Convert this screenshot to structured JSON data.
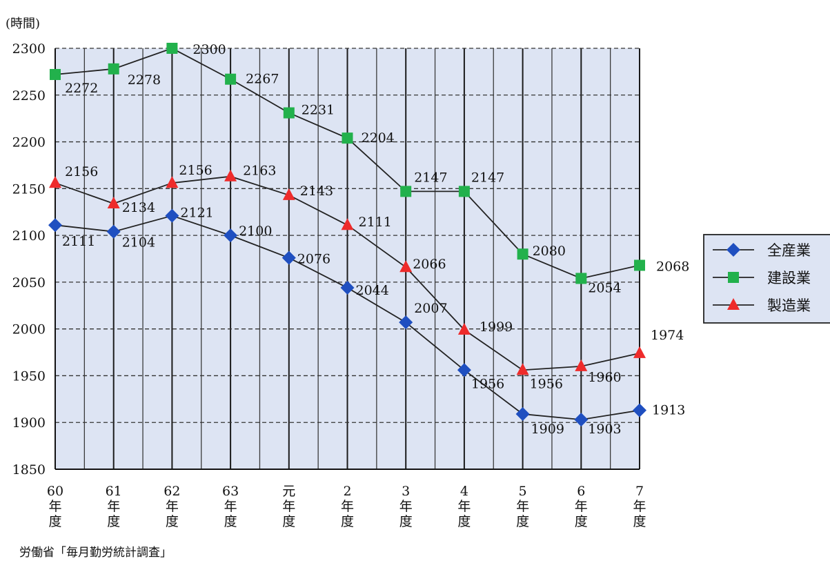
{
  "chart_data": {
    "type": "line",
    "ylabel": "(時間)",
    "ylim": [
      1850,
      2300
    ],
    "yticks": [
      1850,
      1900,
      1950,
      2000,
      2050,
      2100,
      2150,
      2200,
      2250,
      2300
    ],
    "categories": [
      [
        "60",
        "年",
        "度"
      ],
      [
        "61",
        "年",
        "度"
      ],
      [
        "62",
        "年",
        "度"
      ],
      [
        "63",
        "年",
        "度"
      ],
      [
        "元",
        "年",
        "度"
      ],
      [
        "2",
        "年",
        "度"
      ],
      [
        "3",
        "年",
        "度"
      ],
      [
        "4",
        "年",
        "度"
      ],
      [
        "5",
        "年",
        "度"
      ],
      [
        "6",
        "年",
        "度"
      ],
      [
        "7",
        "年",
        "度"
      ]
    ],
    "series": [
      {
        "name": "全産業",
        "marker": "diamond",
        "color": "#1f4fc0",
        "values": [
          2111,
          2104,
          2121,
          2100,
          2076,
          2044,
          2007,
          1956,
          1909,
          1903,
          1913
        ]
      },
      {
        "name": "建設業",
        "marker": "square",
        "color": "#22b14c",
        "values": [
          2272,
          2278,
          2300,
          2267,
          2231,
          2204,
          2147,
          2147,
          2080,
          2054,
          2068
        ]
      },
      {
        "name": "製造業",
        "marker": "triangle",
        "color": "#ee2b2b",
        "values": [
          2156,
          2134,
          2156,
          2163,
          2143,
          2111,
          2066,
          1999,
          1956,
          1960,
          1974
        ]
      }
    ],
    "grid": true,
    "legend": "right",
    "plot_background": "#dde4f3",
    "source": "労働省「毎月勤労統計調査」"
  }
}
